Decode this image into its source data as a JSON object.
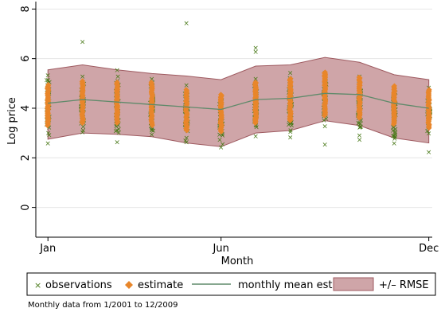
{
  "chart_data": {
    "type": "line",
    "xlabel": "Month",
    "ylabel": "Log price",
    "xticks": [
      {
        "x": 1,
        "label": "Jan"
      },
      {
        "x": 6,
        "label": "Jun"
      },
      {
        "x": 12,
        "label": "Dec"
      }
    ],
    "yticks": [
      0,
      2,
      4,
      6,
      8
    ],
    "xlim": [
      0.65,
      12.1
    ],
    "ylim": [
      -1.2,
      8.3
    ],
    "grid": "horizontal",
    "legend_position": "bottom",
    "note": "Monthly data from 1/2001 to 12/2009",
    "colors": {
      "observations": "#4a7a1a",
      "estimate": "#e8862a",
      "mean": "#5f8a6a",
      "band_fill": "#cfa5a8",
      "band_edge": "#9e5a60"
    },
    "series": [
      {
        "name": "monthly mean est.",
        "x": [
          1,
          2,
          3,
          4,
          5,
          6,
          7,
          8,
          9,
          10,
          11,
          12
        ],
        "y": [
          4.2,
          4.35,
          4.25,
          4.15,
          4.05,
          3.95,
          4.35,
          4.4,
          4.6,
          4.55,
          4.2,
          4.0
        ]
      },
      {
        "name": "+/– RMSE",
        "x": [
          1,
          2,
          3,
          4,
          5,
          6,
          7,
          8,
          9,
          10,
          11,
          12
        ],
        "upper": [
          5.55,
          5.75,
          5.55,
          5.4,
          5.3,
          5.15,
          5.7,
          5.75,
          6.05,
          5.85,
          5.35,
          5.15
        ],
        "lower": [
          2.75,
          3.0,
          2.95,
          2.85,
          2.6,
          2.45,
          3.0,
          3.1,
          3.5,
          3.3,
          2.8,
          2.6
        ]
      },
      {
        "name": "observations",
        "outliers": [
          {
            "x": 2,
            "y": 6.7
          },
          {
            "x": 5,
            "y": 7.45
          },
          {
            "x": 7,
            "y": 6.45
          },
          {
            "x": 7,
            "y": 6.3
          },
          {
            "x": 9,
            "y": 2.55
          },
          {
            "x": 12,
            "y": 2.25
          }
        ],
        "ranges": [
          {
            "x": 1,
            "min": 2.6,
            "max": 5.35
          },
          {
            "x": 2,
            "min": 3.05,
            "max": 5.3
          },
          {
            "x": 3,
            "min": 2.65,
            "max": 5.55
          },
          {
            "x": 4,
            "min": 2.95,
            "max": 5.2
          },
          {
            "x": 5,
            "min": 2.65,
            "max": 4.95
          },
          {
            "x": 6,
            "min": 2.45,
            "max": 4.5
          },
          {
            "x": 7,
            "min": 2.9,
            "max": 5.2
          },
          {
            "x": 8,
            "min": 2.85,
            "max": 5.45
          },
          {
            "x": 9,
            "min": 3.3,
            "max": 5.45
          },
          {
            "x": 10,
            "min": 2.75,
            "max": 5.3
          },
          {
            "x": 11,
            "min": 2.6,
            "max": 4.8
          },
          {
            "x": 12,
            "min": 3.0,
            "max": 4.85
          }
        ]
      },
      {
        "name": "estimate",
        "ranges": [
          {
            "x": 1,
            "min": 3.3,
            "max": 4.95
          },
          {
            "x": 2,
            "min": 3.4,
            "max": 5.1
          },
          {
            "x": 3,
            "min": 3.4,
            "max": 5.05
          },
          {
            "x": 4,
            "min": 3.3,
            "max": 5.05
          },
          {
            "x": 5,
            "min": 3.1,
            "max": 4.75
          },
          {
            "x": 6,
            "min": 3.05,
            "max": 4.55
          },
          {
            "x": 7,
            "min": 3.4,
            "max": 5.05
          },
          {
            "x": 8,
            "min": 3.5,
            "max": 5.2
          },
          {
            "x": 9,
            "min": 3.7,
            "max": 5.45
          },
          {
            "x": 10,
            "min": 3.6,
            "max": 5.25
          },
          {
            "x": 11,
            "min": 3.35,
            "max": 4.9
          },
          {
            "x": 12,
            "min": 3.2,
            "max": 4.75
          }
        ]
      }
    ]
  },
  "legend": {
    "observations_label": "observations",
    "estimate_label": "estimate",
    "mean_label": "monthly mean est.",
    "band_label": "+/– RMSE"
  }
}
